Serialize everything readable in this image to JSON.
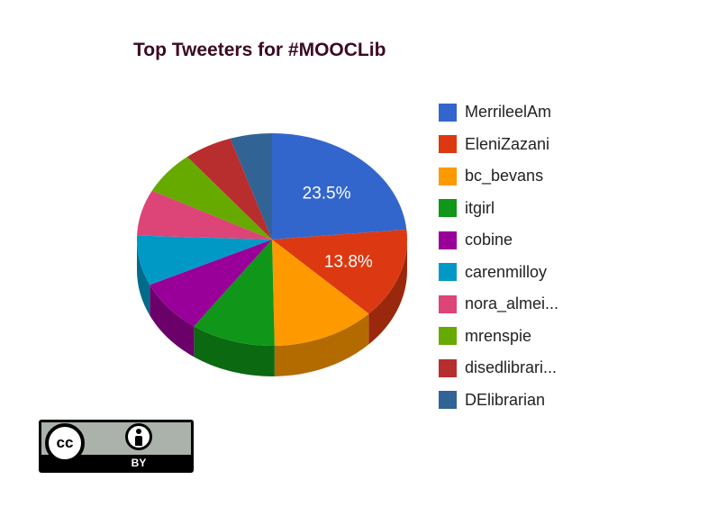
{
  "chart_data": {
    "type": "pie",
    "title": "Top Tweeters for #MOOCLib",
    "legend_position": "right",
    "style": "3d",
    "slices": [
      {
        "label": "MerrileelAm",
        "value": 23.5,
        "value_label": "23.5%",
        "color": "#3366cc"
      },
      {
        "label": "EleniZazani",
        "value": 13.8,
        "value_label": "13.8%",
        "color": "#dc3912"
      },
      {
        "label": "bc_bevans",
        "value": 12.4,
        "value_label": "",
        "color": "#ff9900"
      },
      {
        "label": "itgirl",
        "value": 10.1,
        "value_label": "",
        "color": "#109618"
      },
      {
        "label": "cobine",
        "value": 8.2,
        "value_label": "",
        "color": "#990099"
      },
      {
        "label": "carenmilloy",
        "value": 7.6,
        "value_label": "",
        "color": "#0099c6"
      },
      {
        "label": "nora_almei...",
        "value": 7.0,
        "value_label": "",
        "color": "#dd4477"
      },
      {
        "label": "mrenspie",
        "value": 6.6,
        "value_label": "",
        "color": "#66aa00"
      },
      {
        "label": "disedlibrari...",
        "value": 5.8,
        "value_label": "",
        "color": "#b82e2e"
      },
      {
        "label": "DElibrarian",
        "value": 5.0,
        "value_label": "",
        "color": "#316395"
      }
    ]
  },
  "license_badge": {
    "cc_label": "cc",
    "by_label": "BY"
  }
}
